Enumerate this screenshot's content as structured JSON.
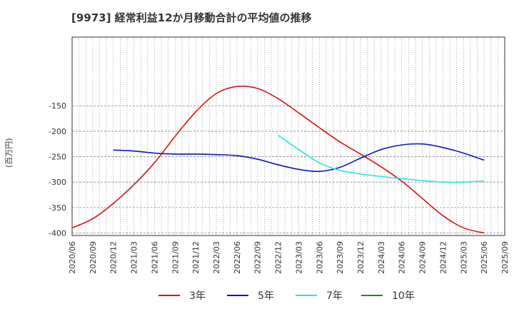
{
  "chart_data": {
    "type": "line",
    "title": "[9973]  経常利益12か月移動合計の平均値の推移",
    "ylabel": "(百万円)",
    "xlabel": "",
    "ylim": [
      -405,
      -15
    ],
    "yticks": [
      -150,
      -200,
      -250,
      -300,
      -350,
      -400
    ],
    "xticks": [
      "2020/06",
      "2020/09",
      "2020/12",
      "2021/03",
      "2021/06",
      "2021/09",
      "2021/12",
      "2022/03",
      "2022/06",
      "2022/09",
      "2022/12",
      "2023/03",
      "2023/06",
      "2023/09",
      "2023/12",
      "2024/03",
      "2024/06",
      "2024/09",
      "2024/12",
      "2025/03",
      "2025/06",
      "2025/09"
    ],
    "series": [
      {
        "name": "3年",
        "color": "#dd1111",
        "x": [
          "2020/06",
          "2020/09",
          "2020/12",
          "2021/03",
          "2021/06",
          "2021/09",
          "2021/12",
          "2022/03",
          "2022/06",
          "2022/09",
          "2022/12",
          "2023/03",
          "2023/06",
          "2023/09",
          "2023/12",
          "2024/03",
          "2024/06",
          "2024/09",
          "2024/12",
          "2025/03",
          "2025/06"
        ],
        "values": [
          -390,
          -372,
          -342,
          -305,
          -262,
          -210,
          -162,
          -126,
          -112,
          -116,
          -136,
          -164,
          -193,
          -221,
          -245,
          -270,
          -298,
          -332,
          -366,
          -390,
          -400
        ]
      },
      {
        "name": "5年",
        "color": "#1111cc",
        "x": [
          "2020/12",
          "2021/03",
          "2021/06",
          "2021/09",
          "2021/12",
          "2022/03",
          "2022/06",
          "2022/09",
          "2022/12",
          "2023/03",
          "2023/06",
          "2023/09",
          "2023/12",
          "2024/03",
          "2024/06",
          "2024/09",
          "2024/12",
          "2025/03",
          "2025/06"
        ],
        "values": [
          -237,
          -239,
          -243,
          -245,
          -245,
          -246,
          -248,
          -255,
          -266,
          -275,
          -279,
          -271,
          -253,
          -236,
          -227,
          -225,
          -232,
          -243,
          -257
        ]
      },
      {
        "name": "7年",
        "color": "#22e6e6",
        "x": [
          "2022/12",
          "2023/03",
          "2023/06",
          "2023/09",
          "2023/12",
          "2024/03",
          "2024/06",
          "2024/09",
          "2024/12",
          "2025/03",
          "2025/06"
        ],
        "values": [
          -208,
          -236,
          -262,
          -277,
          -284,
          -289,
          -293,
          -297,
          -300,
          -300,
          -298
        ]
      },
      {
        "name": "10年",
        "color": "#228822",
        "x": [],
        "values": []
      }
    ],
    "legend_position": "bottom",
    "grid": true
  }
}
